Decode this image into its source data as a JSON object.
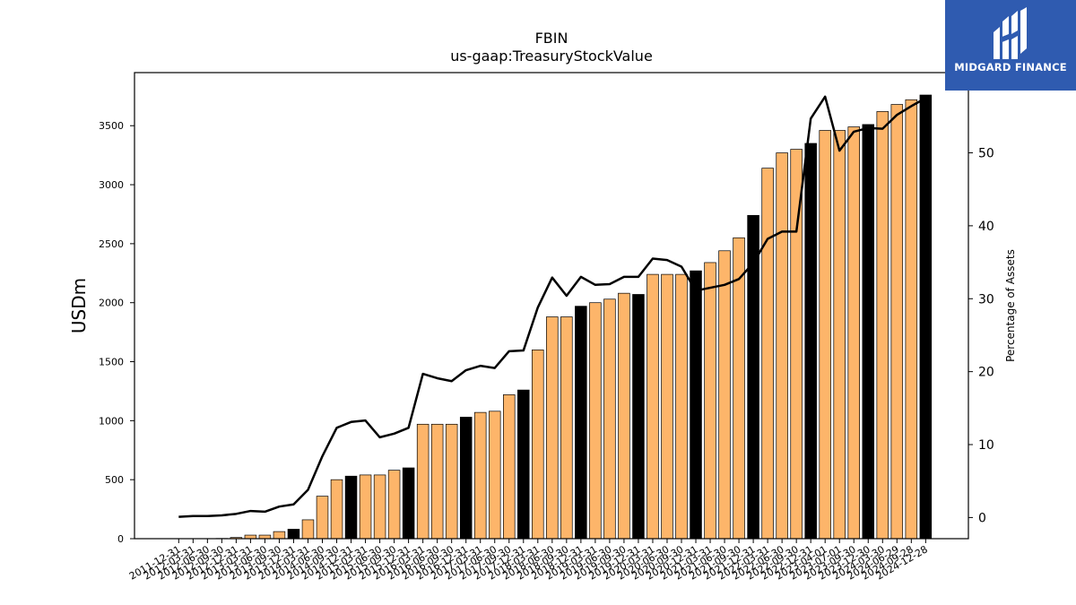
{
  "chart_data": {
    "type": "bar",
    "title": "FBIN",
    "subtitle": "us-gaap:TreasuryStockValue",
    "ylabel": "USDm",
    "y2label": "Percentage of Assets",
    "ylim": [
      0,
      3950
    ],
    "y2lim": [
      -2.9,
      61.0
    ],
    "yticks": [
      0,
      500,
      1000,
      1500,
      2000,
      2500,
      3000,
      3500
    ],
    "y2ticks": [
      0,
      10,
      20,
      30,
      40,
      50
    ],
    "categories": [
      "2011-12-31",
      "2012-03-31",
      "2012-06-30",
      "2012-09-30",
      "2012-12-31",
      "2013-03-31",
      "2013-06-30",
      "2013-09-30",
      "2013-12-31",
      "2014-03-31",
      "2014-06-30",
      "2014-09-30",
      "2014-12-31",
      "2015-03-31",
      "2015-06-30",
      "2015-09-30",
      "2015-12-31",
      "2016-03-31",
      "2016-06-30",
      "2016-09-30",
      "2016-12-31",
      "2017-03-31",
      "2017-06-30",
      "2017-09-30",
      "2017-12-31",
      "2018-03-31",
      "2018-06-30",
      "2018-09-30",
      "2018-12-31",
      "2019-03-31",
      "2019-06-30",
      "2019-09-30",
      "2019-12-31",
      "2020-03-31",
      "2020-06-30",
      "2020-09-30",
      "2020-12-31",
      "2021-03-31",
      "2021-06-30",
      "2021-09-30",
      "2021-12-31",
      "2022-03-31",
      "2022-06-30",
      "2022-09-30",
      "2022-12-31",
      "2023-04-01",
      "2023-07-01",
      "2023-09-30",
      "2023-12-30",
      "2024-03-30",
      "2024-06-29",
      "2024-09-28",
      "2024-12-28"
    ],
    "series": [
      {
        "type": "bar",
        "values": [
          0,
          0,
          0,
          2,
          10,
          30,
          30,
          60,
          80,
          160,
          360,
          500,
          530,
          540,
          540,
          580,
          600,
          970,
          970,
          970,
          1030,
          1070,
          1080,
          1220,
          1260,
          1600,
          1880,
          1880,
          1970,
          2000,
          2030,
          2080,
          2070,
          2240,
          2240,
          2240,
          2270,
          2340,
          2440,
          2550,
          2740,
          3140,
          3270,
          3300,
          3350,
          3460,
          3460,
          3490,
          3510,
          3620,
          3680,
          3720,
          3760
        ]
      },
      {
        "type": "line",
        "axis": "right",
        "values": [
          0.1,
          0.2,
          0.2,
          0.3,
          0.5,
          0.9,
          0.8,
          1.5,
          1.8,
          3.8,
          8.4,
          12.3,
          13.1,
          13.3,
          11.0,
          11.5,
          12.3,
          19.7,
          19.1,
          18.7,
          20.2,
          20.8,
          20.5,
          22.8,
          22.9,
          28.8,
          32.9,
          30.4,
          33.0,
          31.9,
          32.0,
          33.0,
          33.0,
          35.5,
          35.3,
          34.4,
          31.1,
          31.5,
          31.9,
          32.7,
          34.9,
          38.2,
          39.2,
          39.2,
          54.7,
          57.7,
          50.3,
          52.9,
          53.4,
          53.3,
          55.2,
          56.4,
          57.5
        ]
      }
    ],
    "bar_colors": {
      "default": "#fdb56a",
      "highlight": "#000000"
    },
    "highlight_indices": [
      8,
      12,
      16,
      20,
      24,
      28,
      32,
      36,
      40,
      44,
      48,
      52
    ],
    "line_color": "#000000",
    "logo": {
      "text": "MIDGARD FINANCE",
      "background": "#2f5bb0"
    }
  }
}
